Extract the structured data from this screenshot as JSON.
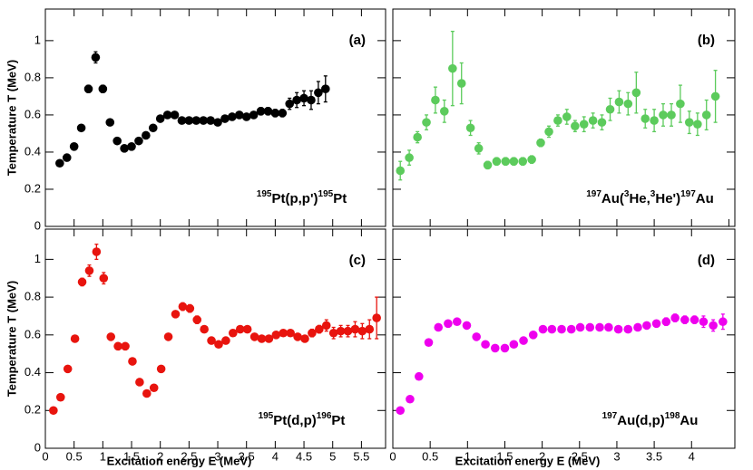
{
  "chart_data": [
    {
      "type": "scatter",
      "panel_label": "(a)",
      "reaction": [
        {
          "text": "195",
          "sup": true
        },
        {
          "text": "Pt(p,p')"
        },
        {
          "text": "195",
          "sup": true
        },
        {
          "text": "Pt"
        }
      ],
      "ylabel": "Temperature T (MeV)",
      "color": "#000000",
      "xlim": [
        0,
        5.92
      ],
      "xticks": [
        0,
        0.5,
        1,
        1.5,
        2,
        2.5,
        3,
        3.5,
        4,
        4.5,
        5,
        5.5
      ],
      "show_xtick_labels": false,
      "ylim": [
        0,
        1.17
      ],
      "yticks": [
        0,
        0.2,
        0.4,
        0.6,
        0.8,
        1
      ],
      "show_ytick_labels": true,
      "x": [
        0.25,
        0.375,
        0.5,
        0.625,
        0.75,
        0.875,
        1.0,
        1.125,
        1.25,
        1.375,
        1.5,
        1.625,
        1.75,
        1.875,
        2.0,
        2.125,
        2.25,
        2.375,
        2.5,
        2.625,
        2.75,
        2.875,
        3.0,
        3.125,
        3.25,
        3.375,
        3.5,
        3.625,
        3.75,
        3.875,
        4.0,
        4.125,
        4.25,
        4.375,
        4.5,
        4.625,
        4.75,
        4.875
      ],
      "values": [
        0.34,
        0.37,
        0.43,
        0.53,
        0.74,
        0.91,
        0.74,
        0.56,
        0.46,
        0.42,
        0.43,
        0.46,
        0.49,
        0.53,
        0.58,
        0.6,
        0.6,
        0.57,
        0.57,
        0.57,
        0.57,
        0.57,
        0.56,
        0.58,
        0.59,
        0.6,
        0.59,
        0.6,
        0.62,
        0.62,
        0.61,
        0.61,
        0.66,
        0.68,
        0.69,
        0.68,
        0.72,
        0.74
      ],
      "errors": [
        0.01,
        0.01,
        0.01,
        0.01,
        0.02,
        0.03,
        0.02,
        0.01,
        0.01,
        0.01,
        0.01,
        0.01,
        0.01,
        0.01,
        0.01,
        0.01,
        0.01,
        0.01,
        0.01,
        0.01,
        0.01,
        0.01,
        0.01,
        0.01,
        0.01,
        0.01,
        0.01,
        0.01,
        0.02,
        0.02,
        0.02,
        0.02,
        0.03,
        0.04,
        0.04,
        0.05,
        0.06,
        0.07
      ]
    },
    {
      "type": "scatter",
      "panel_label": "(b)",
      "reaction": [
        {
          "text": "197",
          "sup": true
        },
        {
          "text": "Au("
        },
        {
          "text": "3",
          "sup": true
        },
        {
          "text": "He,"
        },
        {
          "text": "3",
          "sup": true
        },
        {
          "text": "He')"
        },
        {
          "text": "197",
          "sup": true
        },
        {
          "text": "Au"
        }
      ],
      "color": "#5ccb5c",
      "xlim": [
        0,
        4.58
      ],
      "xticks": [
        0,
        0.5,
        1,
        1.5,
        2,
        2.5,
        3,
        3.5,
        4,
        4.5
      ],
      "show_xtick_labels": false,
      "ylim": [
        0,
        1.17
      ],
      "yticks": [
        0,
        0.2,
        0.4,
        0.6,
        0.8,
        1
      ],
      "show_ytick_labels": false,
      "x": [
        0.1,
        0.22,
        0.33,
        0.45,
        0.57,
        0.69,
        0.8,
        0.92,
        1.04,
        1.15,
        1.27,
        1.39,
        1.51,
        1.62,
        1.74,
        1.86,
        1.98,
        2.09,
        2.21,
        2.33,
        2.44,
        2.56,
        2.68,
        2.8,
        2.91,
        3.03,
        3.15,
        3.26,
        3.38,
        3.5,
        3.62,
        3.73,
        3.85,
        3.97,
        4.08,
        4.2,
        4.32
      ],
      "values": [
        0.3,
        0.37,
        0.48,
        0.56,
        0.68,
        0.62,
        0.85,
        0.77,
        0.53,
        0.42,
        0.33,
        0.35,
        0.35,
        0.35,
        0.35,
        0.36,
        0.45,
        0.51,
        0.57,
        0.59,
        0.54,
        0.55,
        0.57,
        0.56,
        0.63,
        0.67,
        0.66,
        0.72,
        0.58,
        0.57,
        0.6,
        0.6,
        0.66,
        0.56,
        0.55,
        0.6,
        0.7
      ],
      "errors": [
        0.05,
        0.04,
        0.03,
        0.04,
        0.07,
        0.06,
        0.2,
        0.11,
        0.04,
        0.03,
        0.02,
        0.02,
        0.02,
        0.02,
        0.02,
        0.02,
        0.02,
        0.03,
        0.03,
        0.04,
        0.03,
        0.04,
        0.04,
        0.04,
        0.06,
        0.06,
        0.06,
        0.11,
        0.05,
        0.06,
        0.06,
        0.06,
        0.1,
        0.06,
        0.06,
        0.08,
        0.14
      ]
    },
    {
      "type": "scatter",
      "panel_label": "(c)",
      "reaction": [
        {
          "text": "195",
          "sup": true
        },
        {
          "text": "Pt(d,p)"
        },
        {
          "text": "196",
          "sup": true
        },
        {
          "text": "Pt"
        }
      ],
      "ylabel": "Temperature T (MeV)",
      "xlabel": "Excitation energy E (MeV)",
      "color": "#e8140e",
      "xlim": [
        0,
        5.92
      ],
      "xticks": [
        0,
        0.5,
        1,
        1.5,
        2,
        2.5,
        3,
        3.5,
        4,
        4.5,
        5,
        5.5
      ],
      "show_xtick_labels": true,
      "ylim": [
        0,
        1.16
      ],
      "yticks": [
        0,
        0.2,
        0.4,
        0.6,
        0.8,
        1
      ],
      "show_ytick_labels": true,
      "x": [
        0.14,
        0.265,
        0.39,
        0.515,
        0.64,
        0.765,
        0.89,
        1.015,
        1.14,
        1.265,
        1.39,
        1.515,
        1.64,
        1.765,
        1.89,
        2.015,
        2.14,
        2.265,
        2.39,
        2.515,
        2.64,
        2.765,
        2.89,
        3.015,
        3.14,
        3.265,
        3.39,
        3.515,
        3.64,
        3.765,
        3.89,
        4.015,
        4.14,
        4.265,
        4.39,
        4.515,
        4.64,
        4.765,
        4.89,
        5.015,
        5.14,
        5.265,
        5.39,
        5.515,
        5.64,
        5.765
      ],
      "values": [
        0.2,
        0.27,
        0.42,
        0.58,
        0.88,
        0.94,
        1.04,
        0.9,
        0.59,
        0.54,
        0.54,
        0.46,
        0.35,
        0.29,
        0.32,
        0.42,
        0.59,
        0.71,
        0.75,
        0.74,
        0.68,
        0.63,
        0.57,
        0.55,
        0.57,
        0.61,
        0.63,
        0.63,
        0.59,
        0.58,
        0.58,
        0.6,
        0.61,
        0.61,
        0.59,
        0.58,
        0.61,
        0.63,
        0.65,
        0.61,
        0.62,
        0.62,
        0.63,
        0.62,
        0.63,
        0.69
      ],
      "errors": [
        0.01,
        0.01,
        0.01,
        0.01,
        0.02,
        0.03,
        0.04,
        0.03,
        0.01,
        0.01,
        0.01,
        0.01,
        0.01,
        0.01,
        0.01,
        0.01,
        0.01,
        0.01,
        0.02,
        0.02,
        0.02,
        0.01,
        0.01,
        0.01,
        0.01,
        0.01,
        0.01,
        0.01,
        0.01,
        0.01,
        0.01,
        0.01,
        0.01,
        0.01,
        0.01,
        0.01,
        0.02,
        0.02,
        0.03,
        0.03,
        0.03,
        0.03,
        0.04,
        0.04,
        0.05,
        0.11
      ]
    },
    {
      "type": "scatter",
      "panel_label": "(d)",
      "reaction": [
        {
          "text": "197",
          "sup": true
        },
        {
          "text": "Au(d,p)"
        },
        {
          "text": "198",
          "sup": true
        },
        {
          "text": "Au"
        }
      ],
      "xlabel": "Excitation energy E (MeV)",
      "color": "#ee00ee",
      "xlim": [
        0,
        4.58
      ],
      "xticks": [
        0,
        0.5,
        1,
        1.5,
        2,
        2.5,
        3,
        3.5,
        4
      ],
      "show_xtick_labels": true,
      "ylim": [
        0,
        1.16
      ],
      "yticks": [
        0,
        0.2,
        0.4,
        0.6,
        0.8,
        1
      ],
      "show_ytick_labels": false,
      "x": [
        0.1,
        0.23,
        0.35,
        0.48,
        0.61,
        0.74,
        0.86,
        0.99,
        1.12,
        1.24,
        1.37,
        1.5,
        1.62,
        1.75,
        1.88,
        2.01,
        2.13,
        2.26,
        2.39,
        2.51,
        2.64,
        2.77,
        2.89,
        3.02,
        3.15,
        3.28,
        3.4,
        3.53,
        3.66,
        3.78,
        3.91,
        4.04,
        4.16,
        4.29,
        4.42
      ],
      "values": [
        0.2,
        0.26,
        0.38,
        0.56,
        0.64,
        0.66,
        0.67,
        0.65,
        0.59,
        0.55,
        0.53,
        0.53,
        0.55,
        0.57,
        0.6,
        0.63,
        0.63,
        0.63,
        0.63,
        0.64,
        0.64,
        0.64,
        0.64,
        0.63,
        0.63,
        0.64,
        0.65,
        0.66,
        0.67,
        0.69,
        0.68,
        0.68,
        0.67,
        0.65,
        0.67
      ],
      "errors": [
        0.01,
        0.01,
        0.01,
        0.01,
        0.01,
        0.01,
        0.01,
        0.01,
        0.01,
        0.01,
        0.01,
        0.01,
        0.01,
        0.01,
        0.01,
        0.01,
        0.01,
        0.01,
        0.01,
        0.01,
        0.01,
        0.01,
        0.01,
        0.01,
        0.01,
        0.01,
        0.01,
        0.01,
        0.02,
        0.02,
        0.02,
        0.02,
        0.03,
        0.03,
        0.04
      ]
    }
  ]
}
